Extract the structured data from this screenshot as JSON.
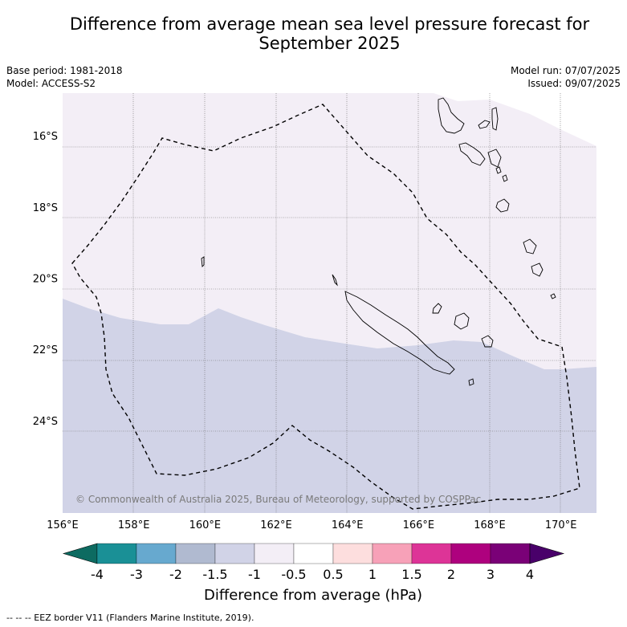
{
  "title": {
    "line1": "Difference from average mean sea level pressure forecast for",
    "line2": "September 2025"
  },
  "meta": {
    "base_period": "Base period: 1981-2018",
    "model": "Model: ACCESS-S2",
    "model_run": "Model run: 07/07/2025",
    "issued": "Issued: 09/07/2025"
  },
  "map": {
    "lon_range": [
      156,
      171
    ],
    "lat_range": [
      -14.8,
      -26.6
    ],
    "lon_ticks": [
      156,
      158,
      160,
      162,
      164,
      166,
      168,
      170
    ],
    "lon_tick_labels": [
      "156°E",
      "158°E",
      "160°E",
      "162°E",
      "164°E",
      "166°E",
      "168°E",
      "170°E"
    ],
    "lat_ticks": [
      -16,
      -18,
      -20,
      -22,
      -24
    ],
    "lat_tick_labels": [
      "16°S",
      "18°S",
      "20°S",
      "22°S",
      "24°S"
    ],
    "copyright": "© Commonwealth of Australia 2025, Bureau of Meteorology, supported by COSPPac",
    "colors": {
      "neg_1_to_0_5": "#f3eef6",
      "neg_1_5_to_1": "#d1d3e7",
      "coast": "#000000",
      "grid": "#555555"
    }
  },
  "colorbar": {
    "tick_labels": [
      "-4",
      "-3",
      "-2",
      "-1.5",
      "-1",
      "-0.5",
      "0.5",
      "1",
      "1.5",
      "2",
      "3",
      "4"
    ],
    "colors": [
      "#0d6b61",
      "#1a9096",
      "#67a9cf",
      "#b0bad0",
      "#d1d3e7",
      "#f3eef6",
      "#ffffff",
      "#fddede",
      "#f7a1b8",
      "#dd3497",
      "#ae017e",
      "#7a0177",
      "#49006a"
    ],
    "label": "Difference from average (hPa)"
  },
  "footer": "-- -- -- EEZ border V11 (Flanders Marine Institute, 2019)."
}
